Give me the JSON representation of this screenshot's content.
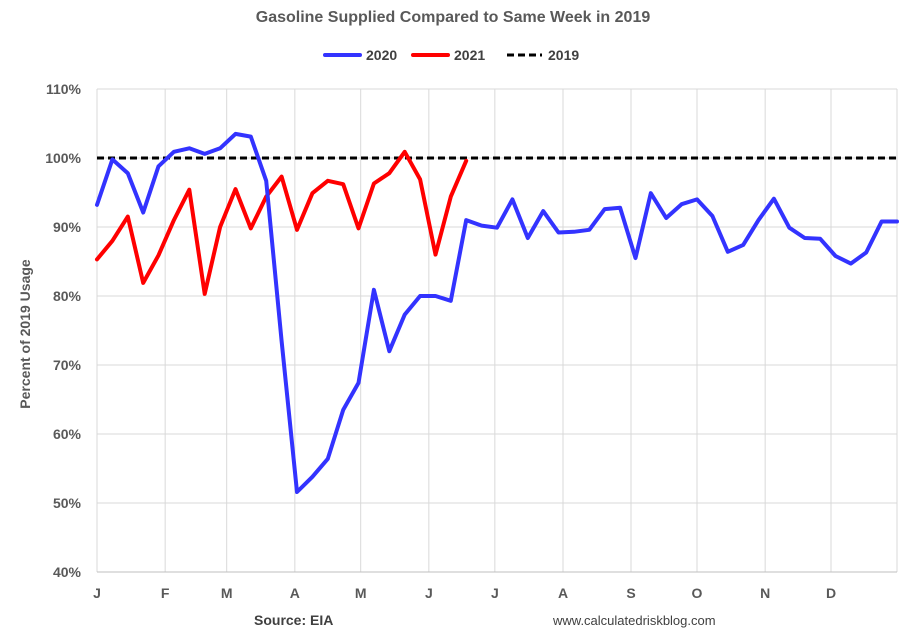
{
  "chart_data": {
    "type": "line",
    "title": "Gasoline Supplied Compared to Same Week in 2019",
    "ylabel": "Percent of 2019 Usage",
    "ylim": [
      40,
      110
    ],
    "yticks": [
      "40%",
      "50%",
      "60%",
      "70%",
      "80%",
      "90%",
      "100%",
      "110%"
    ],
    "xlim": [
      0,
      52
    ],
    "x_tick_labels": [
      {
        "label": "J",
        "week": 0
      },
      {
        "label": "J",
        "week": 0
      },
      {
        "label": "F",
        "week": 4.43
      },
      {
        "label": "M",
        "week": 8.43
      },
      {
        "label": "A",
        "week": 12.86
      },
      {
        "label": "M",
        "week": 17.14
      },
      {
        "label": "J",
        "week": 21.57
      },
      {
        "label": "J",
        "week": 25.86
      },
      {
        "label": "A",
        "week": 30.29
      },
      {
        "label": "S",
        "week": 34.71
      },
      {
        "label": "O",
        "week": 39.0
      },
      {
        "label": "N",
        "week": 43.43
      },
      {
        "label": "D",
        "week": 47.71
      }
    ],
    "grid": true,
    "legend_position": "top",
    "series": [
      {
        "name": "2020",
        "color": "#3333ff",
        "style": "solid",
        "x": [
          0,
          1,
          2,
          3,
          4,
          5,
          6,
          7,
          8,
          9,
          10,
          11,
          12,
          13,
          14,
          15,
          16,
          17,
          18,
          19,
          20,
          21,
          22,
          23,
          24,
          25,
          26,
          27,
          28,
          29,
          30,
          31,
          32,
          33,
          34,
          35,
          36,
          37,
          38,
          39,
          40,
          41,
          42,
          43,
          44,
          45,
          46,
          47,
          48,
          49,
          50,
          51,
          52
        ],
        "values": [
          93.2,
          99.8,
          97.8,
          92.1,
          98.8,
          100.9,
          101.4,
          100.6,
          101.4,
          103.5,
          103.1,
          96.7,
          73.5,
          51.6,
          53.8,
          56.4,
          63.5,
          67.4,
          80.9,
          72.0,
          77.3,
          80.0,
          80.0,
          79.3,
          91.0,
          90.2,
          89.9,
          94.0,
          88.4,
          92.3,
          89.2,
          89.3,
          89.6,
          92.6,
          92.8,
          85.5,
          94.9,
          91.3,
          93.3,
          94.0,
          91.6,
          86.4,
          87.4,
          91.0,
          94.1,
          89.9,
          88.4,
          88.3,
          85.8,
          84.7,
          86.3,
          90.8,
          90.8
        ]
      },
      {
        "name": "2021",
        "color": "#ff0000",
        "style": "solid",
        "x": [
          0,
          1,
          2,
          3,
          4,
          5,
          6,
          7,
          8,
          9,
          10,
          11,
          12,
          13,
          14,
          15,
          16,
          17,
          18,
          19,
          20,
          21,
          22,
          23,
          24
        ],
        "values": [
          85.3,
          88.0,
          91.5,
          81.9,
          85.9,
          91.0,
          95.4,
          80.3,
          90.0,
          95.5,
          89.8,
          94.4,
          97.3,
          89.6,
          94.9,
          96.7,
          96.2,
          89.8,
          96.3,
          97.8,
          100.9,
          96.9,
          86.0,
          94.4,
          99.6
        ]
      },
      {
        "name": "2019",
        "color": "#000000",
        "style": "dashed",
        "x": [
          0,
          52
        ],
        "values": [
          100,
          100
        ]
      }
    ],
    "source": "Source: EIA",
    "website": "www.calculatedriskblog.com"
  }
}
